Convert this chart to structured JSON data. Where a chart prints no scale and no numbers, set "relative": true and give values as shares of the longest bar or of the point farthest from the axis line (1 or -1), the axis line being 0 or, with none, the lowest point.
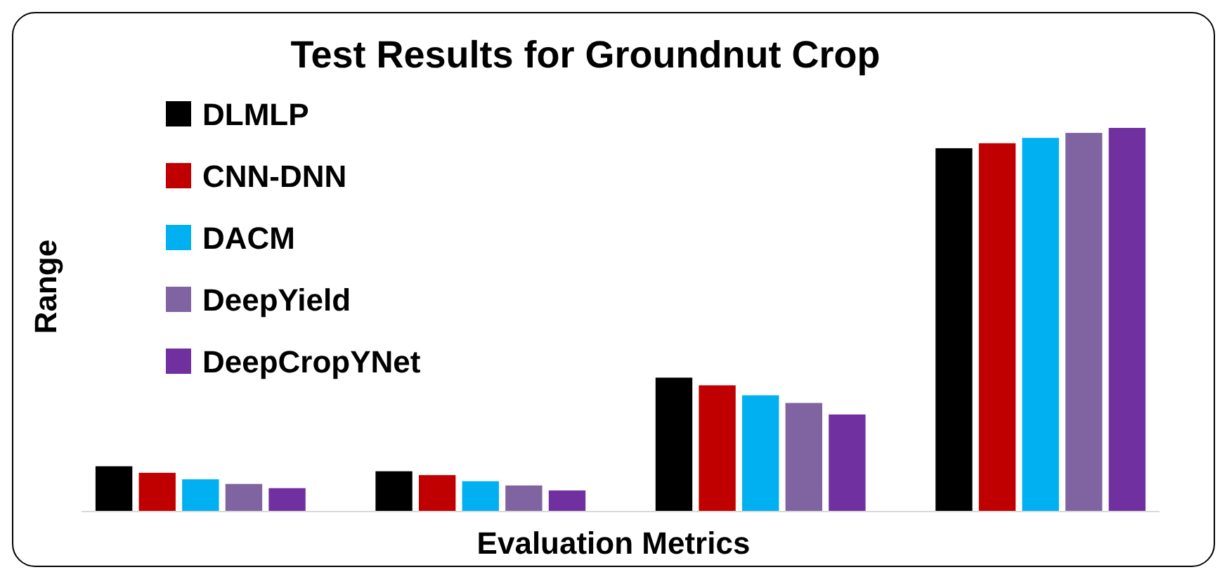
{
  "chart_data": {
    "type": "bar",
    "title": "Test Results for Groundnut Crop",
    "xlabel": "Evaluation Metrics",
    "ylabel": "Range",
    "relative": true,
    "legend": "top left",
    "grid": false,
    "categories": [
      null,
      null,
      null,
      null
    ],
    "series": [
      {
        "name": "DLMLP",
        "color": "#000000",
        "values": [
          0.118,
          0.105,
          0.349,
          0.947
        ]
      },
      {
        "name": "CNN-DNN",
        "color": "#c00000",
        "values": [
          0.101,
          0.095,
          0.329,
          0.96
        ]
      },
      {
        "name": "DACM",
        "color": "#00b0f0",
        "values": [
          0.084,
          0.079,
          0.303,
          0.974
        ]
      },
      {
        "name": "DeepYield",
        "color": "#8064a2",
        "values": [
          0.072,
          0.068,
          0.283,
          0.987
        ]
      },
      {
        "name": "DeepCropYNet",
        "color": "#7030a0",
        "values": [
          0.061,
          0.055,
          0.253,
          1
        ]
      }
    ]
  }
}
